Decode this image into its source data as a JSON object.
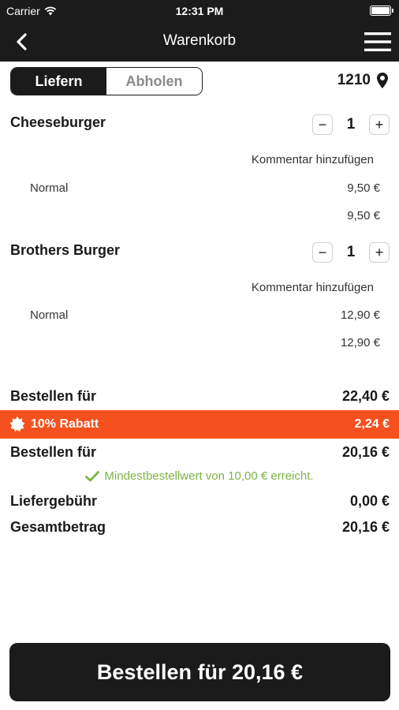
{
  "status_bar": {
    "carrier": "Carrier",
    "time": "12:31 PM"
  },
  "nav": {
    "title": "Warenkorb",
    "icons": [
      "chevron-left-icon",
      "hamburger-menu-icon"
    ]
  },
  "mode": {
    "options": [
      "Liefern",
      "Abholen"
    ],
    "selected": "Liefern"
  },
  "location": {
    "zip": "1210",
    "icon": "map-pin-icon"
  },
  "items": [
    {
      "name": "Cheeseburger",
      "quantity": "1",
      "comment_label": "Kommentar hinzufügen",
      "variant": "Normal",
      "variant_price": "9,50 €",
      "line_total": "9,50 €"
    },
    {
      "name": "Brothers Burger",
      "quantity": "1",
      "comment_label": "Kommentar hinzufügen",
      "variant": "Normal",
      "variant_price": "12,90 €",
      "line_total": "12,90 €"
    }
  ],
  "summary": {
    "subtotal_label": "Bestellen für",
    "subtotal_value": "22,40 €",
    "discount_label": "10% Rabatt",
    "discount_value": "2,24 €",
    "discount_color": "#f4511e",
    "after_discount_label": "Bestellen für",
    "after_discount_value": "20,16 €",
    "min_order_note": "Mindestbestellwert von 10,00 € erreicht.",
    "min_order_color": "#7cb342",
    "delivery_fee_label": "Liefergebühr",
    "delivery_fee_value": "0,00 €",
    "total_label": "Gesamtbetrag",
    "total_value": "20,16 €"
  },
  "order_button": {
    "label": "Bestellen für 20,16 €"
  }
}
